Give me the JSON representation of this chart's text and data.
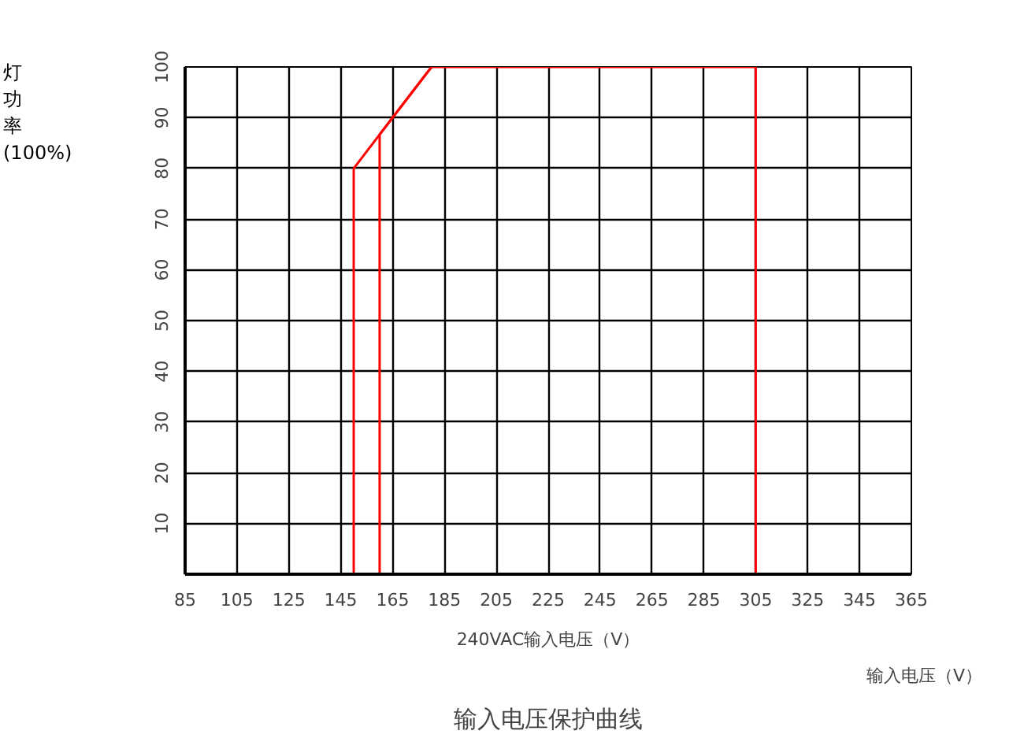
{
  "chart_data": {
    "type": "line",
    "title": "输入电压保护曲线",
    "xlabel": "240VAC输入电压（V）",
    "ylabel": "灯功率(100%)",
    "annotations": [
      "输入电压（V）"
    ],
    "series": [
      {
        "color": "#ff0000",
        "x": [
          85,
          160,
          160,
          180,
          305,
          305,
          325
        ],
        "values": [
          0,
          0,
          86.7,
          100,
          100,
          0,
          0
        ]
      },
      {
        "color": "#ff0000",
        "x": [
          150,
          150,
          180
        ],
        "values": [
          0,
          80,
          100
        ]
      }
    ],
    "xlim": [
      85,
      365
    ],
    "xticks": [
      85,
      105,
      125,
      145,
      165,
      185,
      205,
      225,
      245,
      265,
      285,
      305,
      325,
      345,
      365
    ],
    "ylim": [
      0,
      100
    ],
    "yticks": [
      10,
      20,
      30,
      40,
      50,
      60,
      70,
      80,
      90,
      100
    ],
    "grid": true,
    "marker": "none",
    "line_style": "solid"
  }
}
